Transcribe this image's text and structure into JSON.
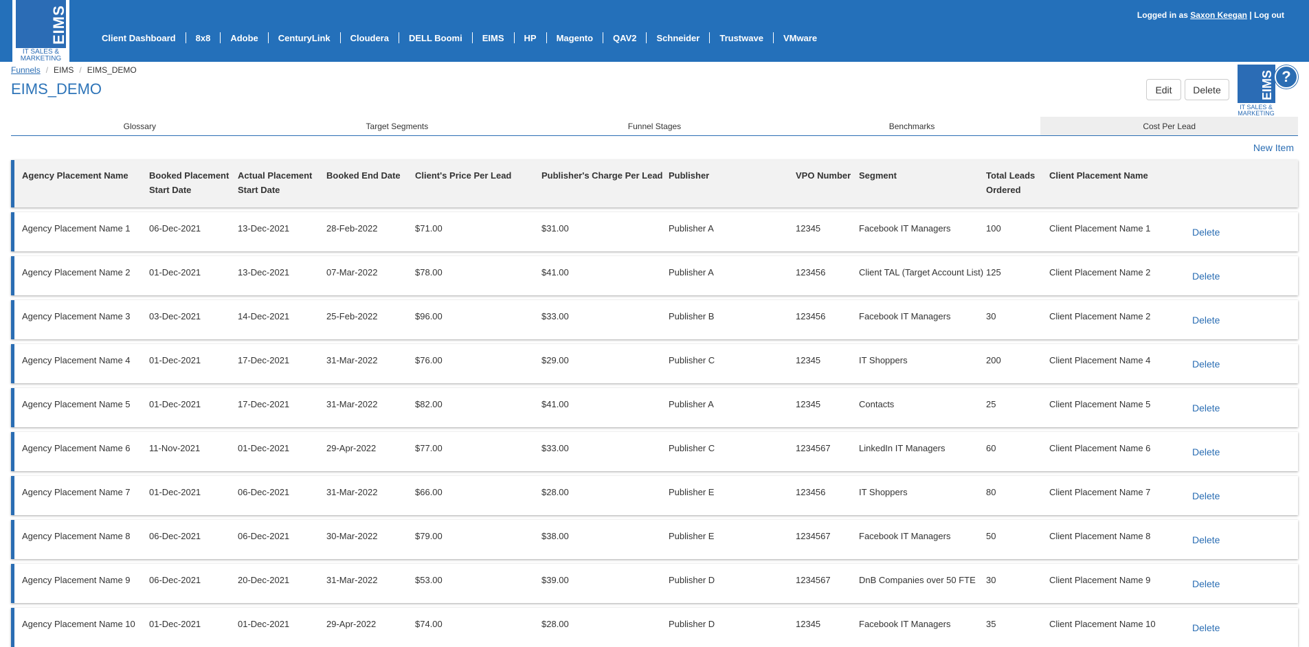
{
  "logo": {
    "text": "EIMS",
    "subtitle": "IT SALES & MARKETING"
  },
  "nav": {
    "items": [
      "Client Dashboard",
      "8x8",
      "Adobe",
      "CenturyLink",
      "Cloudera",
      "DELL Boomi",
      "EIMS",
      "HP",
      "Magento",
      "QAV2",
      "Schneider",
      "Trustwave",
      "VMware"
    ]
  },
  "login": {
    "prefix": "Logged in as",
    "user": "Saxon Keegan",
    "separator": "|",
    "logout": "Log out"
  },
  "breadcrumb": {
    "items": [
      "Funnels",
      "EIMS",
      "EIMS_DEMO"
    ],
    "sep": "/"
  },
  "page": {
    "title": "EIMS_DEMO"
  },
  "actions": {
    "edit": "Edit",
    "delete": "Delete"
  },
  "help": {
    "glyph": "?"
  },
  "tabs": [
    "Glossary",
    "Target Segments",
    "Funnel Stages",
    "Benchmarks",
    "Cost Per Lead"
  ],
  "active_tab": "Cost Per Lead",
  "new_item": "New Item",
  "table": {
    "headers": [
      "Agency Placement Name",
      "Booked Placement Start Date",
      "Actual Placement Start Date",
      "Booked End Date",
      "Client's Price Per Lead",
      "Publisher's Charge Per Lead",
      "Publisher",
      "VPO Number",
      "Segment",
      "Total Leads Ordered",
      "Client Placement Name"
    ],
    "delete_label": "Delete",
    "rows": [
      [
        "Agency Placement Name 1",
        "06-Dec-2021",
        "13-Dec-2021",
        "28-Feb-2022",
        "$71.00",
        "$31.00",
        "Publisher A",
        "12345",
        "Facebook IT Managers",
        "100",
        "Client Placement Name 1"
      ],
      [
        "Agency Placement Name 2",
        "01-Dec-2021",
        "13-Dec-2021",
        "07-Mar-2022",
        "$78.00",
        "$41.00",
        "Publisher A",
        "123456",
        "Client TAL (Target Account List)",
        "125",
        "Client Placement Name 2"
      ],
      [
        "Agency Placement Name 3",
        "03-Dec-2021",
        "14-Dec-2021",
        "25-Feb-2022",
        "$96.00",
        "$33.00",
        "Publisher B",
        "123456",
        "Facebook IT Managers",
        "30",
        "Client Placement Name 2"
      ],
      [
        "Agency Placement Name 4",
        "01-Dec-2021",
        "17-Dec-2021",
        "31-Mar-2022",
        "$76.00",
        "$29.00",
        "Publisher C",
        "12345",
        "IT Shoppers",
        "200",
        "Client Placement Name 4"
      ],
      [
        "Agency Placement Name 5",
        "01-Dec-2021",
        "17-Dec-2021",
        "31-Mar-2022",
        "$82.00",
        "$41.00",
        "Publisher A",
        "12345",
        "Contacts",
        "25",
        "Client Placement Name 5"
      ],
      [
        "Agency Placement Name 6",
        "11-Nov-2021",
        "01-Dec-2021",
        "29-Apr-2022",
        "$77.00",
        "$33.00",
        "Publisher C",
        "1234567",
        "LinkedIn IT Managers",
        "60",
        "Client Placement Name 6"
      ],
      [
        "Agency Placement Name 7",
        "01-Dec-2021",
        "06-Dec-2021",
        "31-Mar-2022",
        "$66.00",
        "$28.00",
        "Publisher E",
        "123456",
        "IT Shoppers",
        "80",
        "Client Placement Name 7"
      ],
      [
        "Agency Placement Name 8",
        "06-Dec-2021",
        "06-Dec-2021",
        "30-Mar-2022",
        "$79.00",
        "$38.00",
        "Publisher E",
        "1234567",
        "Facebook IT Managers",
        "50",
        "Client Placement Name 8"
      ],
      [
        "Agency Placement Name 9",
        "06-Dec-2021",
        "20-Dec-2021",
        "31-Mar-2022",
        "$53.00",
        "$39.00",
        "Publisher D",
        "1234567",
        "DnB Companies over 50 FTE",
        "30",
        "Client Placement Name 9"
      ],
      [
        "Agency Placement Name 10",
        "01-Dec-2021",
        "01-Dec-2021",
        "29-Apr-2022",
        "$74.00",
        "$28.00",
        "Publisher D",
        "12345",
        "Facebook IT Managers",
        "35",
        "Client Placement Name 10"
      ]
    ]
  },
  "colors": {
    "brand": "#2470ba",
    "link": "#2a6db3"
  }
}
